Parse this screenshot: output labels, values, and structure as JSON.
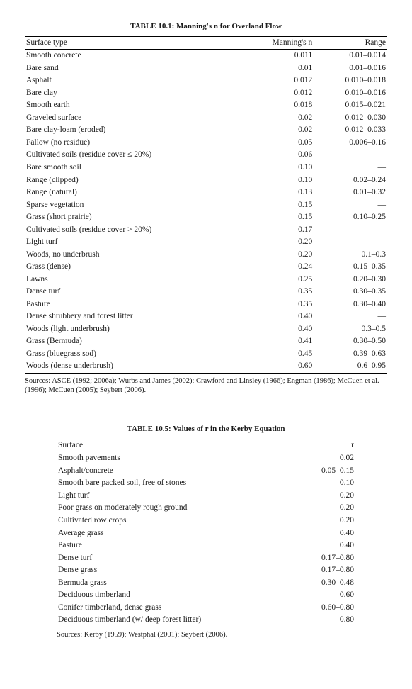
{
  "table1": {
    "title": "TABLE 10.1: Manning's n for Overland Flow",
    "headers": {
      "c1": "Surface type",
      "c2": "Manning's n",
      "c3": "Range"
    },
    "rows": [
      {
        "c1": "Smooth concrete",
        "c2": "0.011",
        "c3": "0.01–0.014"
      },
      {
        "c1": "Bare sand",
        "c2": "0.01",
        "c3": "0.01–0.016"
      },
      {
        "c1": "Asphalt",
        "c2": "0.012",
        "c3": "0.010–0.018"
      },
      {
        "c1": "Bare clay",
        "c2": "0.012",
        "c3": "0.010–0.016"
      },
      {
        "c1": "Smooth earth",
        "c2": "0.018",
        "c3": "0.015–0.021"
      },
      {
        "c1": "Graveled surface",
        "c2": "0.02",
        "c3": "0.012–0.030"
      },
      {
        "c1": "Bare clay-loam (eroded)",
        "c2": "0.02",
        "c3": "0.012–0.033"
      },
      {
        "c1": "Fallow (no residue)",
        "c2": "0.05",
        "c3": "0.006–0.16"
      },
      {
        "c1": "Cultivated soils (residue cover ≤ 20%)",
        "c2": "0.06",
        "c3": "—"
      },
      {
        "c1": "Bare smooth soil",
        "c2": "0.10",
        "c3": "—"
      },
      {
        "c1": "Range (clipped)",
        "c2": "0.10",
        "c3": "0.02–0.24"
      },
      {
        "c1": "Range (natural)",
        "c2": "0.13",
        "c3": "0.01–0.32"
      },
      {
        "c1": "Sparse vegetation",
        "c2": "0.15",
        "c3": "—"
      },
      {
        "c1": "Grass (short prairie)",
        "c2": "0.15",
        "c3": "0.10–0.25"
      },
      {
        "c1": "Cultivated soils (residue cover > 20%)",
        "c2": "0.17",
        "c3": "—"
      },
      {
        "c1": "Light turf",
        "c2": "0.20",
        "c3": "—"
      },
      {
        "c1": "Woods, no underbrush",
        "c2": "0.20",
        "c3": "0.1–0.3"
      },
      {
        "c1": "Grass (dense)",
        "c2": "0.24",
        "c3": "0.15–0.35"
      },
      {
        "c1": "Lawns",
        "c2": "0.25",
        "c3": "0.20–0.30"
      },
      {
        "c1": "Dense turf",
        "c2": "0.35",
        "c3": "0.30–0.35"
      },
      {
        "c1": "Pasture",
        "c2": "0.35",
        "c3": "0.30–0.40"
      },
      {
        "c1": "Dense shrubbery and forest litter",
        "c2": "0.40",
        "c3": "—"
      },
      {
        "c1": "Woods (light underbrush)",
        "c2": "0.40",
        "c3": "0.3–0.5"
      },
      {
        "c1": "Grass (Bermuda)",
        "c2": "0.41",
        "c3": "0.30–0.50"
      },
      {
        "c1": "Grass (bluegrass sod)",
        "c2": "0.45",
        "c3": "0.39–0.63"
      },
      {
        "c1": "Woods (dense underbrush)",
        "c2": "0.60",
        "c3": "0.6–0.95"
      }
    ],
    "sources": "Sources: ASCE (1992; 2006a); Wurbs and James (2002); Crawford and Linsley (1966); Engman (1986); McCuen et al. (1996); McCuen (2005); Seybert (2006)."
  },
  "table2": {
    "title": "TABLE 10.5: Values of r in the Kerby Equation",
    "headers": {
      "c1": "Surface",
      "c2": "r"
    },
    "rows": [
      {
        "c1": "Smooth pavements",
        "c2": "0.02"
      },
      {
        "c1": "Asphalt/concrete",
        "c2": "0.05–0.15"
      },
      {
        "c1": "Smooth bare packed soil, free of stones",
        "c2": "0.10"
      },
      {
        "c1": "Light turf",
        "c2": "0.20"
      },
      {
        "c1": "Poor grass on moderately rough ground",
        "c2": "0.20"
      },
      {
        "c1": "Cultivated row crops",
        "c2": "0.20"
      },
      {
        "c1": "Average grass",
        "c2": "0.40"
      },
      {
        "c1": "Pasture",
        "c2": "0.40"
      },
      {
        "c1": "Dense turf",
        "c2": "0.17–0.80"
      },
      {
        "c1": "Dense grass",
        "c2": "0.17–0.80"
      },
      {
        "c1": "Bermuda grass",
        "c2": "0.30–0.48"
      },
      {
        "c1": "Deciduous timberland",
        "c2": "0.60"
      },
      {
        "c1": "Conifer timberland, dense grass",
        "c2": "0.60–0.80"
      },
      {
        "c1": "Deciduous timberland (w/ deep forest litter)",
        "c2": "0.80"
      }
    ],
    "sources": "Sources: Kerby (1959); Westphal (2001); Seybert (2006)."
  }
}
